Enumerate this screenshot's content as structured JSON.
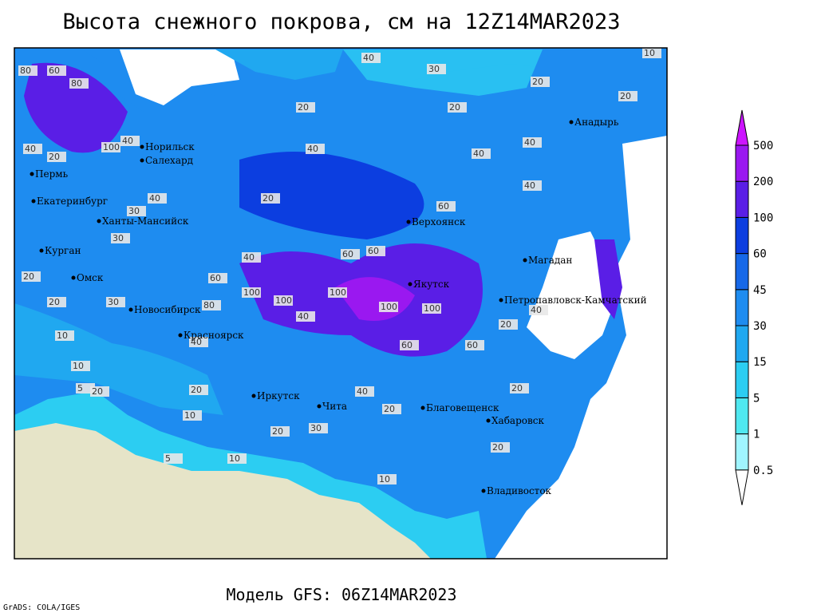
{
  "title": "Высота снежного покрова, см на 12Z14MAR2023",
  "footer": "Модель GFS: 06Z14MAR2023",
  "credit": "GrADS: COLA/IGES",
  "legend": {
    "levels": [
      0.5,
      1,
      5,
      15,
      30,
      45,
      60,
      100,
      200,
      500
    ],
    "colors": [
      "#ffffff",
      "#a0f5ff",
      "#50e8f0",
      "#2ccdf2",
      "#20a8f0",
      "#1e8cf0",
      "#1668e8",
      "#0c3ee0",
      "#5a1ee6",
      "#9a18f0",
      "#cc14ff"
    ]
  },
  "cities": [
    "Норильск",
    "Салехард",
    "Пермь",
    "Екатеринбург",
    "Ханты-Мансийск",
    "Курган",
    "Омск",
    "Новосибирск",
    "Красноярск",
    "Иркутск",
    "Чита",
    "Якутск",
    "Верхоянск",
    "Магадан",
    "Анадырь",
    "Петропавловск-Камчатский",
    "Благовещенск",
    "Хабаровск",
    "Владивосток"
  ],
  "contour_labels": [
    80,
    60,
    80,
    100,
    40,
    40,
    20,
    30,
    40,
    20,
    30,
    20,
    40,
    20,
    40,
    60,
    40,
    20,
    40,
    30,
    20,
    40,
    60,
    60,
    100,
    60,
    80,
    100,
    100,
    100,
    100,
    60,
    60,
    40,
    40,
    20,
    20,
    10,
    10,
    5,
    20,
    30,
    40,
    20,
    10,
    5,
    10,
    20,
    30,
    40,
    20,
    10,
    20,
    40,
    20,
    20,
    10
  ]
}
